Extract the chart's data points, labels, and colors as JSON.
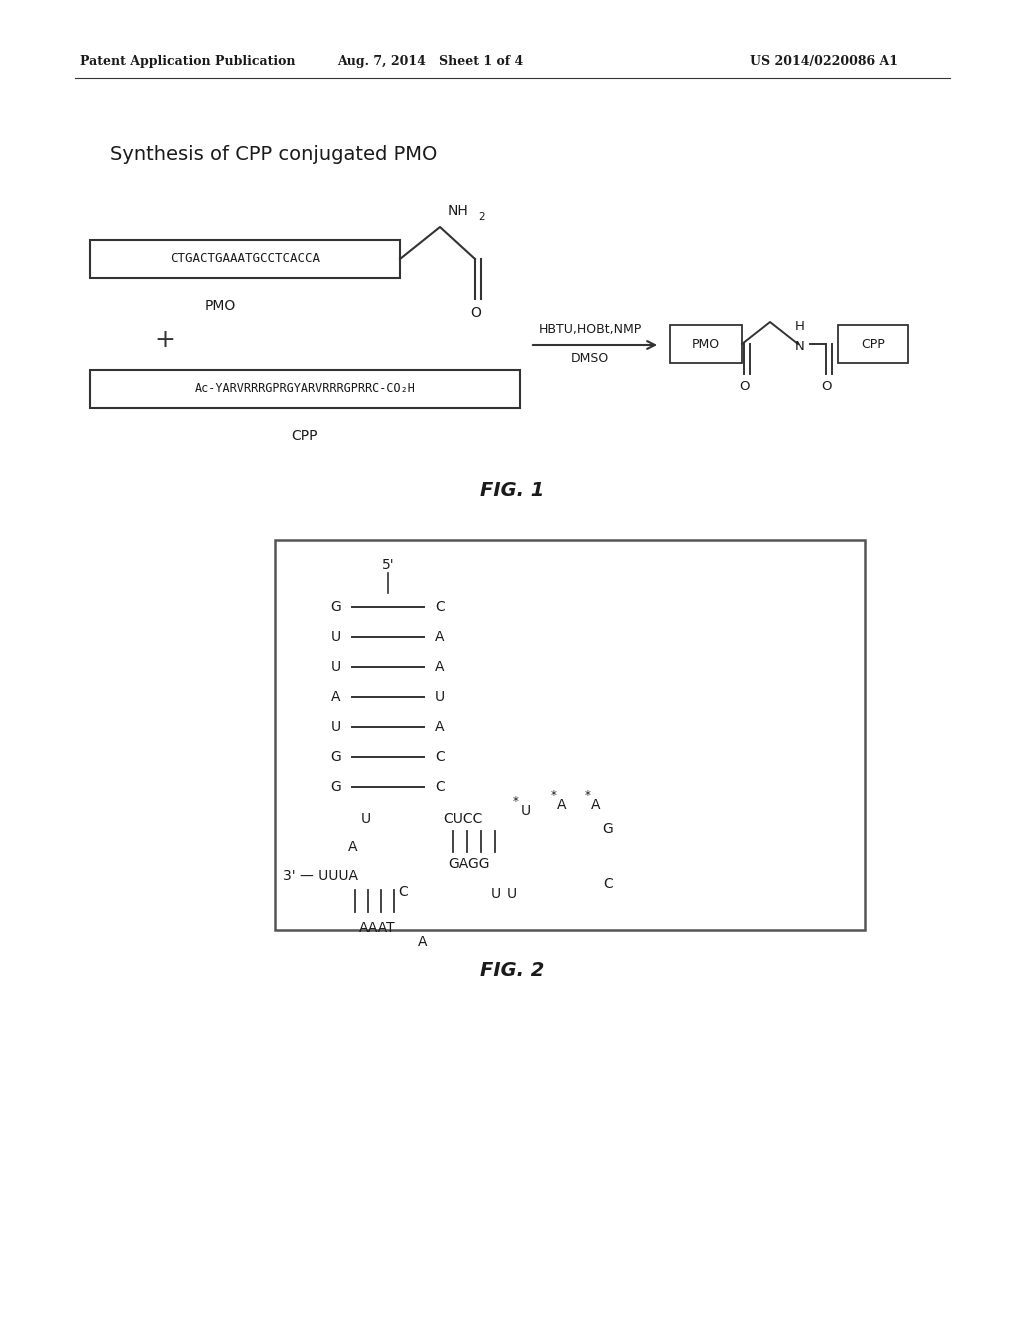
{
  "bg_color": "#ffffff",
  "header_left": "Patent Application Publication",
  "header_center": "Aug. 7, 2014   Sheet 1 of 4",
  "header_right": "US 2014/0220086 A1",
  "fig1_title": "Synthesis of CPP conjugated PMO",
  "fig1_label": "FIG. 1",
  "fig2_label": "FIG. 2",
  "pmo_seq": "CTGACTGAAATGCCTCACCA",
  "cpp_seq": "Ac-YARVRRRGPRGYARVRRRGPRRC-CO₂H"
}
